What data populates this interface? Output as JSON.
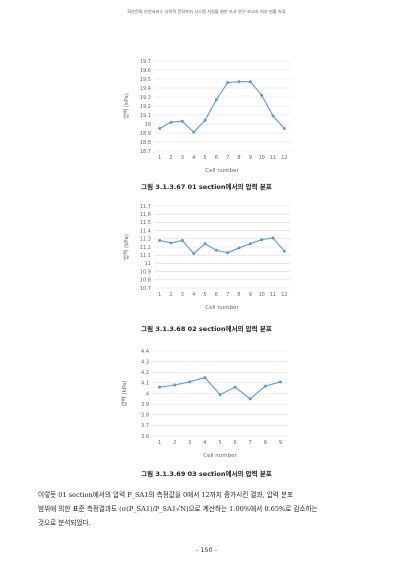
{
  "header": {
    "text": "화순문화 안전서비스 다목적 문화복지 시스템 지원을 위한 조사 연구 보고서 외부 현황 자료"
  },
  "charts": [
    {
      "caption": "그림 3.1.3.67 01 section에서의 압력 분포",
      "chart_data": {
        "type": "line",
        "ylabel": "압력 (kPa)",
        "xlabel": "Cell number",
        "categories": [
          "1",
          "2",
          "3",
          "4",
          "5",
          "6",
          "7",
          "8",
          "9",
          "10",
          "11",
          "12"
        ],
        "yticks": [
          "19.7",
          "19.6",
          "19.5",
          "19.4",
          "19.3",
          "19.2",
          "19.1",
          "19",
          "18.9",
          "18.8",
          "18.7"
        ],
        "ylim": [
          18.7,
          19.7
        ],
        "values": [
          18.95,
          19.02,
          19.03,
          18.91,
          19.04,
          19.27,
          19.46,
          19.47,
          19.47,
          19.32,
          19.09,
          18.95
        ],
        "color": "#5b9bd5",
        "grid": true
      }
    },
    {
      "caption": "그림 3.1.3.68 02 section에서의 압력 분포",
      "chart_data": {
        "type": "line",
        "ylabel": "압력 (kPa)",
        "xlabel": "Cell number",
        "categories": [
          "1",
          "2",
          "3",
          "4",
          "5",
          "6",
          "7",
          "8",
          "9",
          "10",
          "11",
          "12"
        ],
        "yticks": [
          "11.7",
          "11.6",
          "11.5",
          "11.4",
          "11.3",
          "11.2",
          "11.1",
          "11",
          "10.9",
          "10.8",
          "10.7"
        ],
        "ylim": [
          10.7,
          11.7
        ],
        "values": [
          11.28,
          11.25,
          11.28,
          11.12,
          11.24,
          11.16,
          11.13,
          11.19,
          11.24,
          11.29,
          11.31,
          11.15
        ],
        "color": "#5b9bd5",
        "grid": true
      }
    },
    {
      "caption": "그림 3.1.3.69 03 section에서의 압력 분포",
      "chart_data": {
        "type": "line",
        "ylabel": "압력 (kPa)",
        "xlabel": "Cell number",
        "categories": [
          "1",
          "2",
          "3",
          "4",
          "5",
          "6",
          "7",
          "8",
          "9"
        ],
        "yticks": [
          "4.4",
          "4.3",
          "4.2",
          "4.1",
          "4",
          "3.9",
          "3.8",
          "3.7",
          "3.6"
        ],
        "ylim": [
          3.6,
          4.4
        ],
        "values": [
          4.06,
          4.08,
          4.11,
          4.15,
          3.99,
          4.06,
          3.95,
          4.07,
          4.11
        ],
        "color": "#5b9bd5",
        "grid": true
      }
    }
  ],
  "paragraph": {
    "line1": "이렇듯 01 section에서의 압력 P_SA1의 측정값을 0에서 12까지 증가시킨 결과, 압력 분포",
    "line2": "범위에 의한 표준 측정결과도 (σ(P_SA1)/P_SA1√N)으로 계산하는 1.00%에서 0.65%로 감소하는",
    "line3": "것으로 분석되었다."
  },
  "page_number": "- 150 -"
}
